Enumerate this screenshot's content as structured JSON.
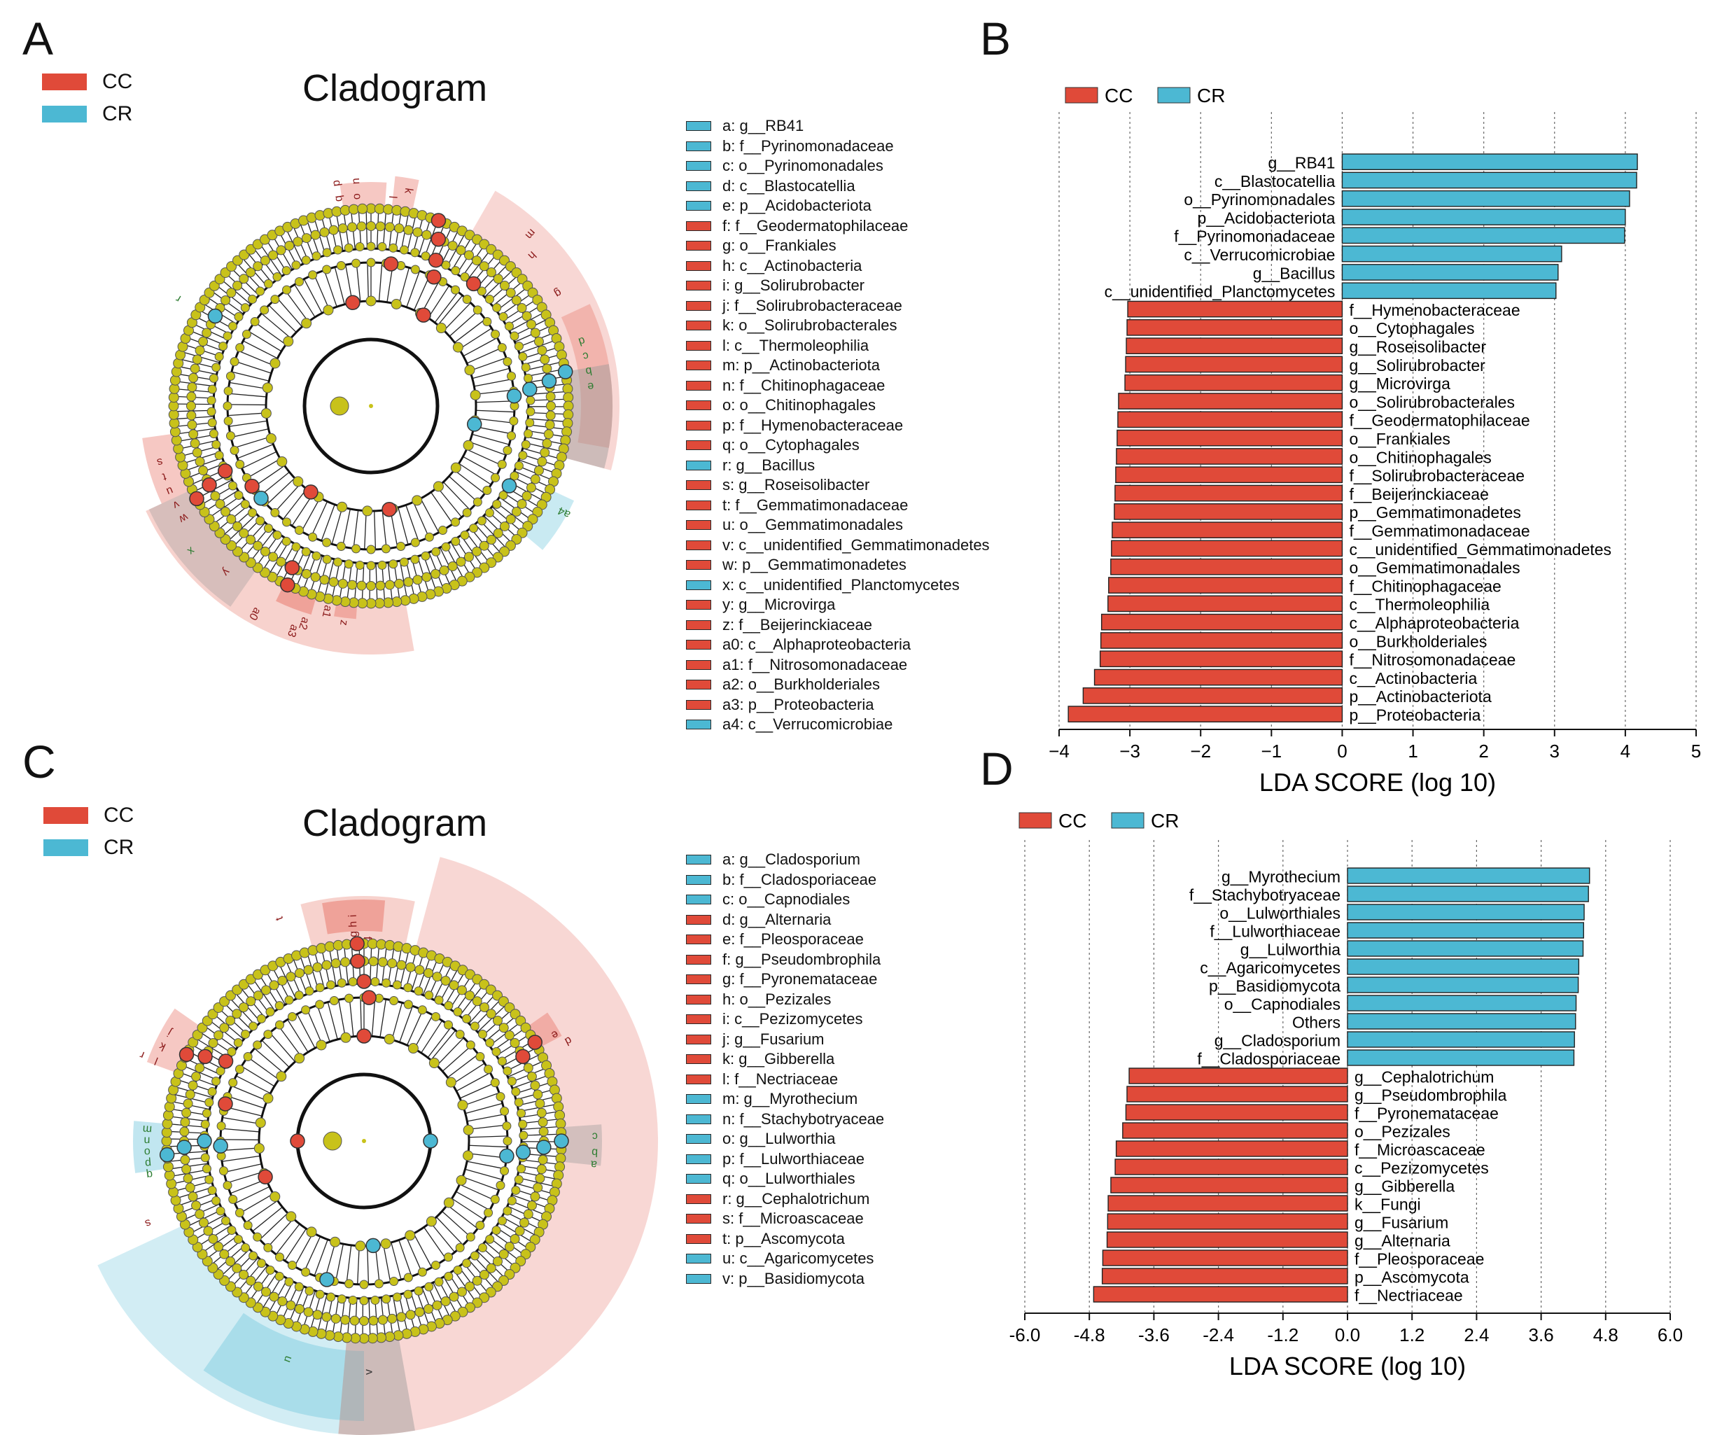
{
  "colors": {
    "CC": "#e04a39",
    "CR": "#4cb8d3",
    "node": "#c8c21a"
  },
  "panels": {
    "A": {
      "letter": "A",
      "title": "Cladogram",
      "legend": [
        {
          "label": "CC",
          "group": "CC"
        },
        {
          "label": "CR",
          "group": "CR"
        }
      ],
      "key": [
        {
          "text": "a: g__RB41",
          "group": "CR"
        },
        {
          "text": "b: f__Pyrinomonadaceae",
          "group": "CR"
        },
        {
          "text": "c: o__Pyrinomonadales",
          "group": "CR"
        },
        {
          "text": "d: c__Blastocatellia",
          "group": "CR"
        },
        {
          "text": "e: p__Acidobacteriota",
          "group": "CR"
        },
        {
          "text": "f: f__Geodermatophilaceae",
          "group": "CC"
        },
        {
          "text": "g: o__Frankiales",
          "group": "CC"
        },
        {
          "text": "h: c__Actinobacteria",
          "group": "CC"
        },
        {
          "text": "i: g__Solirubrobacter",
          "group": "CC"
        },
        {
          "text": "j: f__Solirubrobacteraceae",
          "group": "CC"
        },
        {
          "text": "k: o__Solirubrobacterales",
          "group": "CC"
        },
        {
          "text": "l: c__Thermoleophilia",
          "group": "CC"
        },
        {
          "text": "m: p__Actinobacteriota",
          "group": "CC"
        },
        {
          "text": "n: f__Chitinophagaceae",
          "group": "CC"
        },
        {
          "text": "o: o__Chitinophagales",
          "group": "CC"
        },
        {
          "text": "p: f__Hymenobacteraceae",
          "group": "CC"
        },
        {
          "text": "q: o__Cytophagales",
          "group": "CC"
        },
        {
          "text": "r: g__Bacillus",
          "group": "CR"
        },
        {
          "text": "s: g__Roseisolibacter",
          "group": "CC"
        },
        {
          "text": "t: f__Gemmatimonadaceae",
          "group": "CC"
        },
        {
          "text": "u: o__Gemmatimonadales",
          "group": "CC"
        },
        {
          "text": "v: c__unidentified_Gemmatimonadetes",
          "group": "CC"
        },
        {
          "text": "w: p__Gemmatimonadetes",
          "group": "CC"
        },
        {
          "text": "x: c__unidentified_Planctomycetes",
          "group": "CR"
        },
        {
          "text": "y: g__Microvirga",
          "group": "CC"
        },
        {
          "text": "z: f__Beijerinckiaceae",
          "group": "CC"
        },
        {
          "text": "a0: c__Alphaproteobacteria",
          "group": "CC"
        },
        {
          "text": "a1: f__Nitrosomonadaceae",
          "group": "CC"
        },
        {
          "text": "a2: o__Burkholderiales",
          "group": "CC"
        },
        {
          "text": "a3: p__Proteobacteria",
          "group": "CC"
        },
        {
          "text": "a4: c__Verrucomicrobiae",
          "group": "CR"
        }
      ],
      "sector_labels": [
        "q",
        "o",
        "p",
        "n",
        "l",
        "k",
        "m",
        "h",
        "g",
        "d",
        "c",
        "b",
        "e",
        "a4",
        "a1",
        "a2",
        "a3",
        "a0",
        "z",
        "y",
        "x",
        "w",
        "v",
        "u",
        "t",
        "s",
        "r"
      ]
    },
    "B": {
      "letter": "B"
    },
    "C": {
      "letter": "C",
      "title": "Cladogram",
      "legend": [
        {
          "label": "CC",
          "group": "CC"
        },
        {
          "label": "CR",
          "group": "CR"
        }
      ],
      "key": [
        {
          "text": "a: g__Cladosporium",
          "group": "CR"
        },
        {
          "text": "b: f__Cladosporiaceae",
          "group": "CR"
        },
        {
          "text": "c: o__Capnodiales",
          "group": "CR"
        },
        {
          "text": "d: g__Alternaria",
          "group": "CC"
        },
        {
          "text": "e: f__Pleosporaceae",
          "group": "CC"
        },
        {
          "text": "f: g__Pseudombrophila",
          "group": "CC"
        },
        {
          "text": "g: f__Pyronemataceae",
          "group": "CC"
        },
        {
          "text": "h: o__Pezizales",
          "group": "CC"
        },
        {
          "text": "i: c__Pezizomycetes",
          "group": "CC"
        },
        {
          "text": "j: g__Fusarium",
          "group": "CC"
        },
        {
          "text": "k: g__Gibberella",
          "group": "CC"
        },
        {
          "text": "l: f__Nectriaceae",
          "group": "CC"
        },
        {
          "text": "m: g__Myrothecium",
          "group": "CR"
        },
        {
          "text": "n: f__Stachybotryaceae",
          "group": "CR"
        },
        {
          "text": "o: g__Lulworthia",
          "group": "CR"
        },
        {
          "text": "p: f__Lulworthiaceae",
          "group": "CR"
        },
        {
          "text": "q: o__Lulworthiales",
          "group": "CR"
        },
        {
          "text": "r: g__Cephalotrichum",
          "group": "CC"
        },
        {
          "text": "s: f__Microascaceae",
          "group": "CC"
        },
        {
          "text": "t: p__Ascomycota",
          "group": "CC"
        },
        {
          "text": "u: c__Agaricomycetes",
          "group": "CR"
        },
        {
          "text": "v: p__Basidiomycota",
          "group": "CR"
        }
      ],
      "sector_labels": [
        "t",
        "i",
        "h",
        "g",
        "f",
        "e",
        "d",
        "c",
        "b",
        "a",
        "l",
        "k",
        "j",
        "q",
        "p",
        "o",
        "n",
        "m",
        "s",
        "r",
        "u",
        "v"
      ]
    },
    "D": {
      "letter": "D"
    }
  },
  "chart_data": [
    {
      "panel": "B",
      "type": "bar",
      "orientation": "horizontal",
      "xlabel": "LDA SCORE (log 10)",
      "xlim": [
        -4,
        5
      ],
      "xticks": [
        -4,
        -3,
        -2,
        -1,
        0,
        1,
        2,
        3,
        4,
        5
      ],
      "tick_labels": [
        "−4",
        "−3",
        "−2",
        "−1",
        "0",
        "1",
        "2",
        "3",
        "4",
        "5"
      ],
      "legend": [
        "CC",
        "CR"
      ],
      "grid": "vertical dotted",
      "bars": [
        {
          "label": "g__RB41",
          "value": 4.17,
          "group": "CR"
        },
        {
          "label": "c__Blastocatellia",
          "value": 4.16,
          "group": "CR"
        },
        {
          "label": "o__Pyrinomonadales",
          "value": 4.06,
          "group": "CR"
        },
        {
          "label": "p__Acidobacteriota",
          "value": 4.0,
          "group": "CR"
        },
        {
          "label": "f__Pyrinomonadaceae",
          "value": 3.99,
          "group": "CR"
        },
        {
          "label": "c__Verrucomicrobiae",
          "value": 3.1,
          "group": "CR"
        },
        {
          "label": "g__Bacillus",
          "value": 3.05,
          "group": "CR"
        },
        {
          "label": "c__unidentified_Planctomycetes",
          "value": 3.02,
          "group": "CR"
        },
        {
          "label": "f__Hymenobacteraceae",
          "value": -3.03,
          "group": "CC"
        },
        {
          "label": "o__Cytophagales",
          "value": -3.04,
          "group": "CC"
        },
        {
          "label": "g__Roseisolibacter",
          "value": -3.05,
          "group": "CC"
        },
        {
          "label": "g__Solirubrobacter",
          "value": -3.06,
          "group": "CC"
        },
        {
          "label": "g__Microvirga",
          "value": -3.07,
          "group": "CC"
        },
        {
          "label": "o__Solirubrobacterales",
          "value": -3.16,
          "group": "CC"
        },
        {
          "label": "f__Geodermatophilaceae",
          "value": -3.17,
          "group": "CC"
        },
        {
          "label": "o__Frankiales",
          "value": -3.18,
          "group": "CC"
        },
        {
          "label": "o__Chitinophagales",
          "value": -3.19,
          "group": "CC"
        },
        {
          "label": "f__Solirubrobacteraceae",
          "value": -3.2,
          "group": "CC"
        },
        {
          "label": "f__Beijerinckiaceae",
          "value": -3.21,
          "group": "CC"
        },
        {
          "label": "p__Gemmatimonadetes",
          "value": -3.22,
          "group": "CC"
        },
        {
          "label": "f__Gemmatimonadaceae",
          "value": -3.25,
          "group": "CC"
        },
        {
          "label": "c__unidentified_Gemmatimonadetes",
          "value": -3.26,
          "group": "CC"
        },
        {
          "label": "o__Gemmatimonadales",
          "value": -3.27,
          "group": "CC"
        },
        {
          "label": "f__Chitinophagaceae",
          "value": -3.3,
          "group": "CC"
        },
        {
          "label": "c__Thermoleophilia",
          "value": -3.31,
          "group": "CC"
        },
        {
          "label": "c__Alphaproteobacteria",
          "value": -3.4,
          "group": "CC"
        },
        {
          "label": "o__Burkholderiales",
          "value": -3.41,
          "group": "CC"
        },
        {
          "label": "f__Nitrosomonadaceae",
          "value": -3.42,
          "group": "CC"
        },
        {
          "label": "c__Actinobacteria",
          "value": -3.5,
          "group": "CC"
        },
        {
          "label": "p__Actinobacteriota",
          "value": -3.66,
          "group": "CC"
        },
        {
          "label": "p__Proteobacteria",
          "value": -3.87,
          "group": "CC"
        }
      ]
    },
    {
      "panel": "D",
      "type": "bar",
      "orientation": "horizontal",
      "xlabel": "LDA SCORE (log 10)",
      "xlim": [
        -6,
        6
      ],
      "xticks": [
        -6,
        -4.8,
        -3.6,
        -2.4,
        -1.2,
        0,
        1.2,
        2.4,
        3.6,
        4.8,
        6
      ],
      "tick_labels": [
        "-6.0",
        "-4.8",
        "-3.6",
        "-2.4",
        "-1.2",
        "0.0",
        "1.2",
        "2.4",
        "3.6",
        "4.8",
        "6.0"
      ],
      "legend": [
        "CC",
        "CR"
      ],
      "grid": "vertical dotted",
      "bars": [
        {
          "label": "g__Myrothecium",
          "value": 4.5,
          "group": "CR"
        },
        {
          "label": "f__Stachybotryaceae",
          "value": 4.48,
          "group": "CR"
        },
        {
          "label": "o__Lulworthiales",
          "value": 4.4,
          "group": "CR"
        },
        {
          "label": "f__Lulworthiaceae",
          "value": 4.39,
          "group": "CR"
        },
        {
          "label": "g__Lulworthia",
          "value": 4.38,
          "group": "CR"
        },
        {
          "label": "c__Agaricomycetes",
          "value": 4.3,
          "group": "CR"
        },
        {
          "label": "p__Basidiomycota",
          "value": 4.29,
          "group": "CR"
        },
        {
          "label": "o__Capnodiales",
          "value": 4.25,
          "group": "CR"
        },
        {
          "label": "Others",
          "value": 4.24,
          "group": "CR"
        },
        {
          "label": "g__Cladosporium",
          "value": 4.22,
          "group": "CR"
        },
        {
          "label": "f__Cladosporiaceae",
          "value": 4.21,
          "group": "CR"
        },
        {
          "label": "g__Cephalotrichum",
          "value": -4.06,
          "group": "CC"
        },
        {
          "label": "g__Pseudombrophila",
          "value": -4.1,
          "group": "CC"
        },
        {
          "label": "f__Pyronemataceae",
          "value": -4.12,
          "group": "CC"
        },
        {
          "label": "o__Pezizales",
          "value": -4.18,
          "group": "CC"
        },
        {
          "label": "f__Microascaceae",
          "value": -4.3,
          "group": "CC"
        },
        {
          "label": "c__Pezizomycetes",
          "value": -4.32,
          "group": "CC"
        },
        {
          "label": "g__Gibberella",
          "value": -4.4,
          "group": "CC"
        },
        {
          "label": "k__Fungi",
          "value": -4.45,
          "group": "CC"
        },
        {
          "label": "g__Fusarium",
          "value": -4.46,
          "group": "CC"
        },
        {
          "label": "g__Alternaria",
          "value": -4.47,
          "group": "CC"
        },
        {
          "label": "f__Pleosporaceae",
          "value": -4.55,
          "group": "CC"
        },
        {
          "label": "p__Ascomycota",
          "value": -4.56,
          "group": "CC"
        },
        {
          "label": "f__Nectriaceae",
          "value": -4.72,
          "group": "CC"
        }
      ]
    }
  ]
}
